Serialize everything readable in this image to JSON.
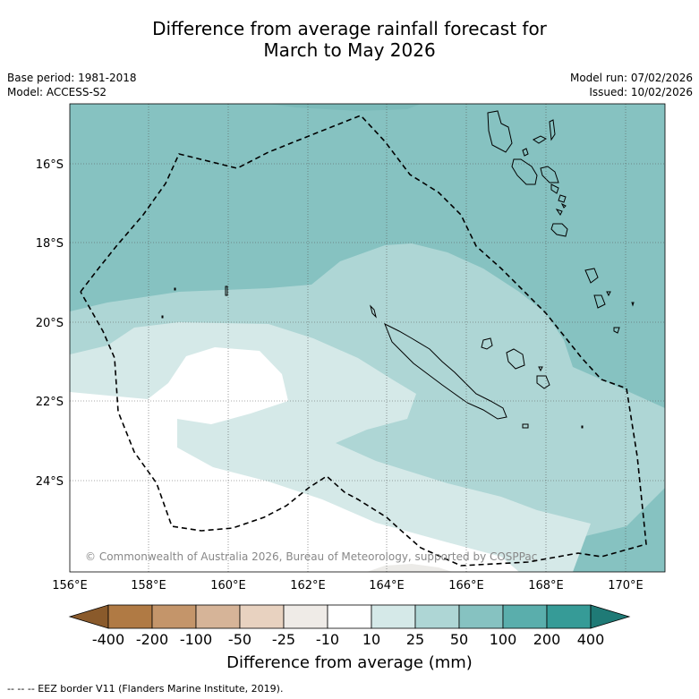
{
  "title_line1": "Difference from average rainfall forecast for",
  "title_line2": "March to May 2026",
  "base_period": "Base period: 1981-2018",
  "model": "Model: ACCESS-S2",
  "model_run": "Model run: 07/02/2026",
  "issued": "Issued: 10/02/2026",
  "lat_labels": [
    "16°S",
    "18°S",
    "20°S",
    "22°S",
    "24°S"
  ],
  "lon_labels": [
    "156°E",
    "158°E",
    "160°E",
    "162°E",
    "164°E",
    "166°E",
    "168°E",
    "170°E"
  ],
  "copyright": "© Commonwealth of Australia 2026, Bureau of Meteorology, supported by COSPPac",
  "colorbar": {
    "ticks": [
      "-400",
      "-200",
      "-100",
      "-50",
      "-25",
      "-10",
      "10",
      "25",
      "50",
      "100",
      "200",
      "400"
    ],
    "colors": [
      "#8a5a2b",
      "#b07a44",
      "#c4956a",
      "#d6b498",
      "#e8d2c0",
      "#efebe7",
      "#ffffff",
      "#d5e9e8",
      "#aed6d5",
      "#86c2c1",
      "#5aaeac",
      "#369b97",
      "#1f7a76"
    ],
    "label": "Difference from average (mm)"
  },
  "footer": "--  --  -- EEZ border V11 (Flanders Marine Institute, 2019)."
}
